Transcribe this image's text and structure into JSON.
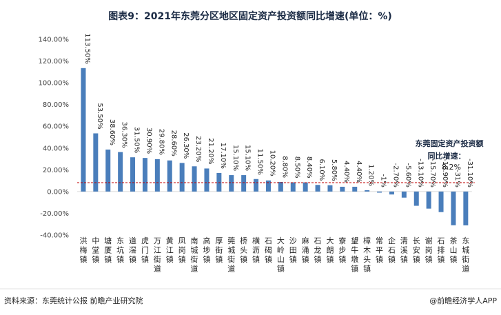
{
  "title": "图表9：2021年东莞分区地区固定资产投资额同比增速(单位：%)",
  "source": "资料来源：东莞统计公报 前瞻产业研究院",
  "brand": "@前瞻经济学人APP",
  "annotation": {
    "line1": "东莞固定资产投资额",
    "line2": "同比增速：",
    "value_label": "8.2%",
    "value": 8.2
  },
  "colors": {
    "bar": "#4a7ebb",
    "reference_line": "#c00000",
    "axis": "#d9d9d9",
    "title": "#1a2a44"
  },
  "chart_data": {
    "type": "bar",
    "title": "图表9：2021年东莞分区地区固定资产投资额同比增速(单位：%)",
    "ylabel": "",
    "xlabel": "",
    "ylim": [
      -40,
      140
    ],
    "yticks": [
      -40,
      -20,
      0,
      20,
      40,
      60,
      80,
      100,
      120,
      140
    ],
    "ytick_labels": [
      "-40.00%",
      "-20.00%",
      "0.00%",
      "20.00%",
      "40.00%",
      "60.00%",
      "80.00%",
      "100.00%",
      "120.00%",
      "140.00%"
    ],
    "grid": false,
    "legend": "none",
    "reference_line": 8.2,
    "categories": [
      "洪梅镇",
      "中堂镇",
      "塘厦镇",
      "东坑镇",
      "道滘镇",
      "虎门镇",
      "万江街道",
      "黄江镇",
      "凤岗镇",
      "南城街道",
      "高埗镇",
      "厚街镇",
      "莞城街道",
      "桥头镇",
      "横沥镇",
      "石碣镇",
      "大岭山镇",
      "沙田镇",
      "麻涌镇",
      "石龙镇",
      "大朗镇",
      "寮步镇",
      "望牛墩镇",
      "樟木头镇",
      "常平镇",
      "企石镇",
      "清溪镇",
      "长安镇",
      "谢岗镇",
      "石排镇",
      "茶山镇",
      "东城街道"
    ],
    "values": [
      113.5,
      53.5,
      38.6,
      36.3,
      31.5,
      30.9,
      29.8,
      28.6,
      26.3,
      23.2,
      21.2,
      17.1,
      15.1,
      15.1,
      11.5,
      10.2,
      8.8,
      8.5,
      8.4,
      6.1,
      5.8,
      4.4,
      4.4,
      1.2,
      -1,
      -2.7,
      -5.6,
      -13.1,
      -15.7,
      -18.9,
      -31,
      -31.1
    ],
    "data_labels": [
      "113.50%",
      "53.50%",
      "38.60%",
      "36.30%",
      "31.50%",
      "30.90%",
      "29.80%",
      "28.60%",
      "26.30%",
      "23.20%",
      "21.20%",
      "17.10%",
      "15.10%",
      "15.10%",
      "11.50%",
      "10.20%",
      "8.80%",
      "8.50%",
      "8.40%",
      "6.10%",
      "5.80%",
      "4.40%",
      "4.40%",
      "1.20%",
      "-1%",
      "-2.70%",
      "-5.60%",
      "-13.10%",
      "-15.70%",
      "-18.90%",
      "-31%",
      "-31.10%"
    ]
  }
}
